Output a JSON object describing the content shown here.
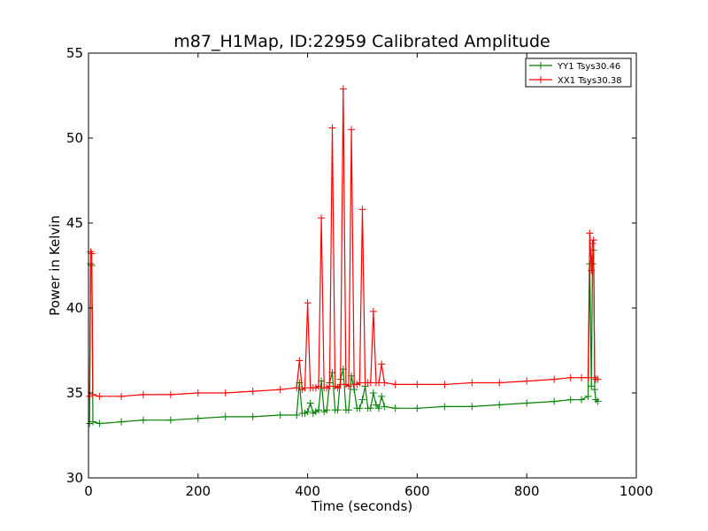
{
  "chart_data": {
    "type": "line",
    "title": "m87_H1Map, ID:22959 Calibrated Amplitude",
    "xlabel": "Time (seconds)",
    "ylabel": "Power in Kelvin",
    "xlim": [
      0,
      1000
    ],
    "ylim": [
      30,
      55
    ],
    "xticks": [
      0,
      200,
      400,
      600,
      800,
      1000
    ],
    "yticks": [
      30,
      35,
      40,
      45,
      50,
      55
    ],
    "grid": false,
    "legend_position": "top-right",
    "series": [
      {
        "name": "YY1 Tsys30.46",
        "color": "#008000",
        "marker": "+",
        "x": [
          2,
          4,
          6,
          8,
          20,
          60,
          100,
          150,
          200,
          250,
          300,
          350,
          380,
          385,
          390,
          395,
          400,
          405,
          410,
          415,
          420,
          425,
          430,
          435,
          440,
          445,
          450,
          455,
          460,
          465,
          470,
          475,
          480,
          485,
          490,
          495,
          500,
          505,
          510,
          515,
          520,
          525,
          530,
          535,
          540,
          560,
          600,
          650,
          700,
          750,
          800,
          850,
          880,
          900,
          912,
          915,
          918,
          920,
          922,
          924,
          926,
          930
        ],
        "y": [
          33.2,
          42.6,
          42.5,
          33.3,
          33.2,
          33.3,
          33.4,
          33.4,
          33.5,
          33.6,
          33.6,
          33.7,
          33.7,
          35.6,
          33.8,
          33.8,
          33.9,
          34.4,
          33.8,
          33.9,
          34.0,
          35.7,
          33.9,
          34.0,
          35.6,
          36.2,
          34.0,
          34.0,
          35.8,
          36.4,
          34.0,
          34.0,
          36.0,
          35.2,
          34.1,
          34.1,
          34.6,
          35.4,
          34.1,
          34.1,
          35.0,
          34.3,
          34.1,
          34.8,
          34.2,
          34.1,
          34.1,
          34.2,
          34.2,
          34.3,
          34.4,
          34.5,
          34.6,
          34.6,
          34.8,
          42.6,
          35.4,
          42.6,
          43.4,
          35.2,
          34.6,
          34.5
        ]
      },
      {
        "name": "XX1 Tsys30.38",
        "color": "#ff0000",
        "marker": "+",
        "x": [
          2,
          4,
          6,
          8,
          20,
          60,
          100,
          150,
          200,
          250,
          300,
          350,
          380,
          385,
          390,
          395,
          400,
          405,
          410,
          415,
          420,
          425,
          430,
          435,
          440,
          445,
          450,
          455,
          460,
          465,
          470,
          475,
          480,
          485,
          490,
          495,
          500,
          505,
          510,
          515,
          520,
          525,
          530,
          535,
          540,
          560,
          600,
          650,
          700,
          750,
          800,
          850,
          880,
          900,
          912,
          915,
          918,
          920,
          922,
          924,
          926,
          930
        ],
        "y": [
          34.8,
          43.3,
          43.2,
          34.9,
          34.8,
          34.8,
          34.9,
          34.9,
          35.0,
          35.0,
          35.1,
          35.2,
          35.3,
          36.9,
          35.2,
          35.3,
          40.3,
          35.3,
          35.3,
          35.3,
          35.4,
          45.3,
          35.3,
          35.3,
          35.4,
          50.6,
          35.4,
          35.3,
          35.5,
          52.9,
          35.5,
          35.4,
          50.5,
          35.5,
          35.5,
          35.6,
          45.8,
          35.6,
          35.6,
          35.6,
          39.8,
          35.6,
          35.6,
          36.7,
          35.6,
          35.5,
          35.5,
          35.5,
          35.6,
          35.6,
          35.7,
          35.8,
          35.9,
          35.9,
          35.9,
          44.4,
          42.2,
          43.8,
          44.0,
          35.9,
          35.8,
          35.8
        ]
      }
    ]
  }
}
